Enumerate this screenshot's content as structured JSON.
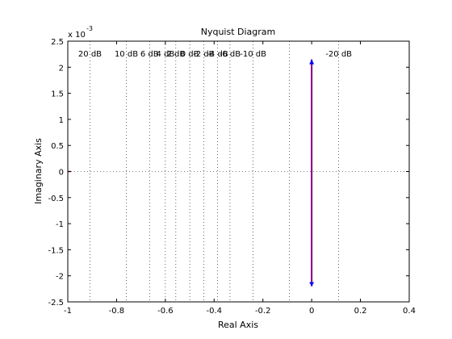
{
  "chart_data": {
    "type": "line",
    "title": "Nyquist Diagram",
    "xlabel": "Real Axis",
    "ylabel": "Imaginary Axis",
    "exponent_base": "x 10",
    "exponent_power": "-3",
    "xlim": [
      -1,
      0.4
    ],
    "ylim": [
      -0.0025,
      0.0025
    ],
    "xticks": [
      -1,
      -0.8,
      -0.6,
      -0.4,
      -0.2,
      0,
      0.2,
      0.4
    ],
    "xtick_labels": [
      "-1",
      "-0.8",
      "-0.6",
      "-0.4",
      "-0.2",
      "0",
      "0.2",
      "0.4"
    ],
    "yticks": [
      -0.0025,
      -0.002,
      -0.0015,
      -0.001,
      -0.0005,
      0,
      0.0005,
      0.001,
      0.0015,
      0.002,
      0.0025
    ],
    "ytick_labels": [
      "-2.5",
      "-2",
      "-1.5",
      "-1",
      "-0.5",
      "0",
      "0.5",
      "1",
      "1.5",
      "2",
      "2.5"
    ],
    "grid": true,
    "mcircles": [
      {
        "label": "20 dB",
        "x": -0.909
      },
      {
        "label": "10 dB",
        "x": -0.76
      },
      {
        "label": "6 dB",
        "x": -0.665
      },
      {
        "label": "4 dB",
        "x": -0.6
      },
      {
        "label": "2 dB",
        "x": -0.557
      },
      {
        "label": "0 dB",
        "x": -0.5
      },
      {
        "label": "-2 dB",
        "x": -0.443
      },
      {
        "label": "-4 dB",
        "x": -0.386
      },
      {
        "label": "-6 dB",
        "x": -0.335
      },
      {
        "label": "-10 dB",
        "x": -0.24
      },
      {
        "label": "-20 dB",
        "x": 0.111
      }
    ],
    "mcircles_extra_x": [
      -0.091
    ],
    "series": [
      {
        "color": "#0000ff",
        "x": [
          0,
          0,
          0,
          0
        ],
        "y": [
          0.00215,
          0.0014,
          -0.0014,
          -0.0022
        ]
      },
      {
        "color": "#ff0000",
        "x": [
          0,
          0
        ],
        "y": [
          0.00215,
          -0.0022
        ]
      }
    ],
    "critical_point": {
      "x": -1,
      "y": 0,
      "color": "#ff0000"
    }
  }
}
